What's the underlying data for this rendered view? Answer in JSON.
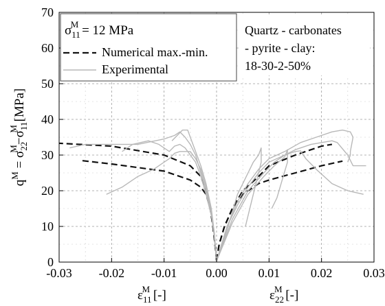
{
  "chart_data": {
    "type": "line",
    "x_range": [
      -0.03,
      0.03
    ],
    "ylim": [
      0,
      70
    ],
    "x_ticks": [
      -0.03,
      -0.02,
      -0.01,
      0.0,
      0.01,
      0.02,
      0.03
    ],
    "x_tick_labels": [
      "-0.03",
      "-0.02",
      "-0.01",
      "0.00",
      "0.01",
      "0.02",
      "0.03"
    ],
    "y_ticks": [
      0,
      10,
      20,
      30,
      40,
      50,
      60,
      70
    ],
    "y_tick_labels": [
      "0",
      "10",
      "20",
      "30",
      "40",
      "50",
      "60",
      "70"
    ],
    "ylabel": {
      "base": "q",
      "base_sup": "M",
      "eq": " = σ",
      "s1_sub": "22",
      "s1_sup": "M",
      "minus": "−σ",
      "s2_sub": "11",
      "s2_sup": "M",
      "unit": " [MPa]"
    },
    "xlabel_left": {
      "base": "ε",
      "sub": "11",
      "sup": "M",
      "unit": " [-]"
    },
    "xlabel_right": {
      "base": "ε",
      "sub": "22",
      "sup": "M",
      "unit": " [-]"
    },
    "grid": true,
    "legend": {
      "placement": "top-left",
      "title": {
        "base": "σ",
        "sub": "11",
        "sup": "M",
        "rest": " = 12 MPa"
      },
      "entries": [
        "Numerical max.-min.",
        "Experimental"
      ]
    },
    "annotation": [
      "Quartz - carbonates",
      "- pyrite - clay:",
      "18-30-2-50%"
    ],
    "colors": {
      "numerical": "#111111",
      "experimental": "#b8b8b8",
      "grid": "#9a9a9a"
    },
    "series": [
      {
        "name": "Numerical max.-min.",
        "style": "dashed",
        "curves": [
          [
            [
              0.0,
              0.5
            ],
            [
              -0.0003,
              5
            ],
            [
              -0.0007,
              10
            ],
            [
              -0.0012,
              15
            ],
            [
              -0.002,
              19
            ],
            [
              -0.003,
              21
            ],
            [
              -0.005,
              23
            ],
            [
              -0.01,
              25.5
            ],
            [
              -0.02,
              27.5
            ],
            [
              -0.026,
              28.5
            ]
          ],
          [
            [
              0.0,
              0.5
            ],
            [
              -0.0003,
              5
            ],
            [
              -0.0007,
              10
            ],
            [
              -0.0012,
              15
            ],
            [
              -0.002,
              20
            ],
            [
              -0.003,
              24
            ],
            [
              -0.005,
              27
            ],
            [
              -0.01,
              30
            ],
            [
              -0.02,
              32.5
            ],
            [
              -0.03,
              33.3
            ]
          ],
          [
            [
              0.0,
              0.5
            ],
            [
              0.0005,
              5
            ],
            [
              0.0015,
              10
            ],
            [
              0.003,
              15
            ],
            [
              0.005,
              19
            ],
            [
              0.008,
              22
            ],
            [
              0.01,
              23
            ],
            [
              0.015,
              25
            ],
            [
              0.02,
              27
            ],
            [
              0.024,
              28.3
            ]
          ],
          [
            [
              0.0,
              0.5
            ],
            [
              0.0005,
              5
            ],
            [
              0.0015,
              10
            ],
            [
              0.003,
              15
            ],
            [
              0.005,
              20
            ],
            [
              0.008,
              24
            ],
            [
              0.01,
              27
            ],
            [
              0.015,
              30
            ],
            [
              0.02,
              32.5
            ],
            [
              0.022,
              33
            ]
          ]
        ]
      },
      {
        "name": "Experimental",
        "style": "solid",
        "curves": [
          [
            [
              0.0,
              0.3
            ],
            [
              -0.0005,
              8
            ],
            [
              -0.001,
              14
            ],
            [
              -0.002,
              20
            ],
            [
              -0.003,
              25
            ],
            [
              -0.004,
              30
            ],
            [
              -0.005,
              33
            ],
            [
              -0.006,
              35
            ],
            [
              -0.007,
              36.5
            ],
            [
              -0.008,
              35.5
            ],
            [
              -0.01,
              34.5
            ],
            [
              -0.015,
              33
            ],
            [
              -0.02,
              33
            ],
            [
              -0.025,
              33
            ],
            [
              -0.028,
              32
            ]
          ],
          [
            [
              0.0,
              0.3
            ],
            [
              -0.0004,
              8
            ],
            [
              -0.001,
              15
            ],
            [
              -0.002,
              22
            ],
            [
              -0.003,
              27
            ],
            [
              -0.004,
              31
            ],
            [
              -0.005,
              35
            ],
            [
              -0.0055,
              37
            ],
            [
              -0.0065,
              37
            ],
            [
              -0.0085,
              34
            ]
          ],
          [
            [
              0.0,
              0.3
            ],
            [
              -0.0005,
              8
            ],
            [
              -0.001,
              14
            ],
            [
              -0.002,
              21
            ],
            [
              -0.003,
              26
            ],
            [
              -0.004,
              29
            ],
            [
              -0.005,
              31
            ],
            [
              -0.007,
              31
            ],
            [
              -0.008,
              30.5
            ],
            [
              -0.009,
              29
            ],
            [
              -0.012,
              26
            ],
            [
              -0.015,
              24
            ],
            [
              -0.018,
              21
            ],
            [
              -0.021,
              19
            ]
          ],
          [
            [
              0.0,
              0.3
            ],
            [
              -0.0005,
              8
            ],
            [
              -0.001,
              13
            ],
            [
              -0.002,
              19
            ],
            [
              -0.003,
              24
            ],
            [
              -0.004,
              28
            ],
            [
              -0.006,
              32
            ],
            [
              -0.007,
              33
            ],
            [
              -0.008,
              32.5
            ],
            [
              -0.009,
              31
            ],
            [
              -0.011,
              33
            ],
            [
              -0.013,
              34
            ],
            [
              -0.016,
              33
            ],
            [
              -0.018,
              31
            ]
          ],
          [
            [
              0.0,
              0.3
            ],
            [
              0.002,
              10
            ],
            [
              0.004,
              17
            ],
            [
              0.006,
              22
            ],
            [
              0.008,
              26
            ],
            [
              0.01,
              29
            ],
            [
              0.013,
              31
            ],
            [
              0.016,
              33.5
            ],
            [
              0.019,
              35
            ],
            [
              0.022,
              36.5
            ],
            [
              0.024,
              37
            ],
            [
              0.0255,
              36.5
            ],
            [
              0.026,
              35
            ],
            [
              0.0255,
              31
            ],
            [
              0.0255,
              30
            ],
            [
              0.025,
              28
            ]
          ],
          [
            [
              0.0,
              0.3
            ],
            [
              0.002,
              10
            ],
            [
              0.004,
              16
            ],
            [
              0.006,
              21
            ],
            [
              0.008,
              25
            ],
            [
              0.01,
              28
            ],
            [
              0.013,
              30
            ],
            [
              0.015,
              31.5
            ],
            [
              0.018,
              33
            ],
            [
              0.022,
              34
            ],
            [
              0.023,
              33.5
            ],
            [
              0.025,
              30
            ],
            [
              0.026,
              27
            ],
            [
              0.0285,
              27
            ]
          ],
          [
            [
              0.0,
              0.3
            ],
            [
              0.002,
              9
            ],
            [
              0.003,
              14
            ],
            [
              0.004,
              19
            ],
            [
              0.005,
              22
            ],
            [
              0.006,
              25
            ],
            [
              0.007,
              28
            ],
            [
              0.008,
              30
            ],
            [
              0.0085,
              32
            ],
            [
              0.0085,
              28
            ],
            [
              0.0075,
              22
            ],
            [
              0.0065,
              16
            ],
            [
              0.0055,
              10
            ]
          ],
          [
            [
              0.0,
              0.3
            ],
            [
              0.003,
              12
            ],
            [
              0.006,
              20
            ],
            [
              0.009,
              25
            ],
            [
              0.011,
              28
            ],
            [
              0.013,
              30
            ],
            [
              0.015,
              31
            ],
            [
              0.016,
              31.2
            ],
            [
              0.017,
              29
            ],
            [
              0.019,
              26
            ],
            [
              0.022,
              22
            ],
            [
              0.025,
              20
            ],
            [
              0.028,
              19
            ]
          ],
          [
            [
              0.0,
              0.3
            ],
            [
              0.003,
              11
            ],
            [
              0.006,
              19
            ],
            [
              0.009,
              24
            ],
            [
              0.011,
              27
            ],
            [
              0.013,
              29.5
            ],
            [
              0.0135,
              31.5
            ],
            [
              0.0135,
              28
            ],
            [
              0.0125,
              23
            ],
            [
              0.0115,
              18
            ],
            [
              0.0105,
              15
            ]
          ]
        ]
      }
    ]
  }
}
